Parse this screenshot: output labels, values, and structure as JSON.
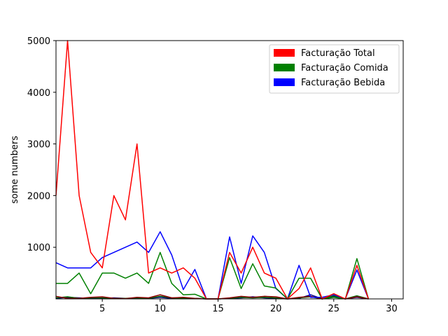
{
  "chart_data": {
    "type": "line",
    "title": "",
    "xlabel": "",
    "ylabel": "some numbers",
    "xlim": [
      1,
      31
    ],
    "ylim": [
      0,
      5000
    ],
    "x_ticks": [
      5,
      10,
      15,
      20,
      25,
      30
    ],
    "y_ticks": [
      1000,
      2000,
      3000,
      4000,
      5000
    ],
    "legend_position": "top-right",
    "x": [
      1,
      2,
      3,
      4,
      5,
      6,
      7,
      8,
      9,
      10,
      11,
      12,
      13,
      14,
      15,
      16,
      17,
      18,
      19,
      20,
      21,
      22,
      23,
      24,
      25,
      26,
      27,
      28
    ],
    "series": [
      {
        "name": "Facturação Total",
        "color": "#ff0000",
        "values": [
          2000,
          5000,
          2000,
          900,
          600,
          2000,
          1530,
          3000,
          500,
          600,
          500,
          600,
          400,
          0,
          0,
          900,
          500,
          1000,
          500,
          400,
          0,
          200,
          600,
          0,
          100,
          0,
          650,
          0
        ]
      },
      {
        "name": "Facturação Comida",
        "color": "#008000",
        "values": [
          300,
          300,
          500,
          100,
          500,
          500,
          400,
          500,
          300,
          900,
          300,
          80,
          90,
          0,
          0,
          800,
          200,
          680,
          250,
          210,
          0,
          400,
          400,
          0,
          30,
          0,
          780,
          0
        ]
      },
      {
        "name": "Facturação Bebida",
        "color": "#0000ff",
        "values": [
          700,
          600,
          600,
          600,
          800,
          900,
          1000,
          1100,
          900,
          1300,
          850,
          180,
          570,
          0,
          0,
          1200,
          300,
          1220,
          900,
          200,
          0,
          650,
          30,
          30,
          80,
          0,
          560,
          0
        ]
      },
      {
        "name": "",
        "color": "#8b0000",
        "values": [
          50,
          10,
          10,
          30,
          40,
          10,
          5,
          30,
          20,
          80,
          20,
          30,
          10,
          0,
          0,
          20,
          50,
          30,
          50,
          40,
          0,
          30,
          50,
          0,
          90,
          0,
          40,
          0
        ]
      },
      {
        "name": "",
        "color": "#006400",
        "values": [
          20,
          40,
          10,
          20,
          20,
          10,
          10,
          20,
          10,
          50,
          20,
          10,
          10,
          0,
          0,
          10,
          30,
          20,
          30,
          20,
          0,
          20,
          40,
          0,
          60,
          0,
          60,
          0
        ]
      },
      {
        "name": "",
        "color": "#00008b",
        "values": [
          10,
          30,
          20,
          10,
          10,
          20,
          10,
          10,
          10,
          30,
          10,
          10,
          10,
          0,
          0,
          10,
          20,
          40,
          20,
          10,
          0,
          10,
          80,
          0,
          40,
          0,
          30,
          0
        ]
      }
    ]
  }
}
